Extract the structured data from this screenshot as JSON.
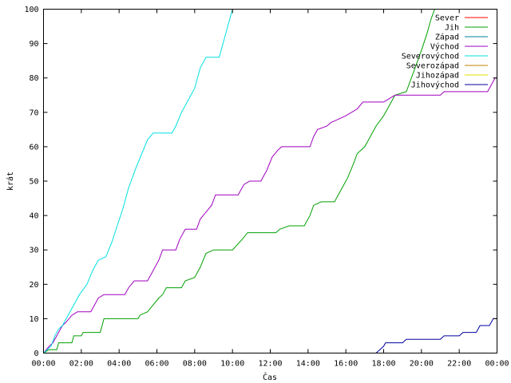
{
  "chart_data": {
    "type": "line",
    "title": "",
    "xlabel": "Čas",
    "ylabel": "krát",
    "x_unit": "hours",
    "xlim": [
      0,
      24
    ],
    "ylim": [
      0,
      100
    ],
    "x_ticks": [
      {
        "value": 0,
        "label": "00:00"
      },
      {
        "value": 2,
        "label": "02:00"
      },
      {
        "value": 4,
        "label": "04:00"
      },
      {
        "value": 6,
        "label": "06:00"
      },
      {
        "value": 8,
        "label": "08:00"
      },
      {
        "value": 10,
        "label": "10:00"
      },
      {
        "value": 12,
        "label": "12:00"
      },
      {
        "value": 14,
        "label": "14:00"
      },
      {
        "value": 16,
        "label": "16:00"
      },
      {
        "value": 18,
        "label": "18:00"
      },
      {
        "value": 20,
        "label": "20:00"
      },
      {
        "value": 22,
        "label": "22:00"
      },
      {
        "value": 24,
        "label": "00:00"
      }
    ],
    "y_ticks": [
      {
        "value": 0,
        "label": "0"
      },
      {
        "value": 10,
        "label": "10"
      },
      {
        "value": 20,
        "label": "20"
      },
      {
        "value": 30,
        "label": "30"
      },
      {
        "value": 40,
        "label": "40"
      },
      {
        "value": 50,
        "label": "50"
      },
      {
        "value": 60,
        "label": "60"
      },
      {
        "value": 70,
        "label": "70"
      },
      {
        "value": 80,
        "label": "80"
      },
      {
        "value": 90,
        "label": "90"
      },
      {
        "value": 100,
        "label": "100"
      }
    ],
    "grid": false,
    "legend_position": "top-right",
    "series": [
      {
        "name": "Sever",
        "color": "#ff0000",
        "points": []
      },
      {
        "name": "Jih",
        "color": "#00a000",
        "points": [
          [
            0,
            0
          ],
          [
            0.3,
            1
          ],
          [
            0.7,
            1
          ],
          [
            0.8,
            3
          ],
          [
            1.5,
            3
          ],
          [
            1.6,
            5
          ],
          [
            2.0,
            5
          ],
          [
            2.1,
            6
          ],
          [
            3.0,
            6
          ],
          [
            3.1,
            8
          ],
          [
            3.2,
            10
          ],
          [
            5.0,
            10
          ],
          [
            5.1,
            11
          ],
          [
            5.5,
            12
          ],
          [
            5.8,
            14
          ],
          [
            6.1,
            16
          ],
          [
            6.3,
            17
          ],
          [
            6.5,
            19
          ],
          [
            7.3,
            19
          ],
          [
            7.5,
            21
          ],
          [
            8.0,
            22
          ],
          [
            8.3,
            25
          ],
          [
            8.6,
            29
          ],
          [
            9.0,
            30
          ],
          [
            10.0,
            30
          ],
          [
            10.5,
            33
          ],
          [
            10.8,
            35
          ],
          [
            12.3,
            35
          ],
          [
            12.5,
            36
          ],
          [
            13.0,
            37
          ],
          [
            13.8,
            37
          ],
          [
            14.1,
            40
          ],
          [
            14.3,
            43
          ],
          [
            14.7,
            44
          ],
          [
            15.4,
            44
          ],
          [
            15.6,
            46
          ],
          [
            15.9,
            49
          ],
          [
            16.1,
            51
          ],
          [
            16.4,
            55
          ],
          [
            16.6,
            58
          ],
          [
            17.0,
            60
          ],
          [
            17.3,
            63
          ],
          [
            17.6,
            66
          ],
          [
            18.0,
            69
          ],
          [
            18.3,
            72
          ],
          [
            18.6,
            75
          ],
          [
            19.2,
            76
          ],
          [
            19.6,
            82
          ],
          [
            20.0,
            88
          ],
          [
            20.3,
            93
          ],
          [
            20.5,
            97
          ],
          [
            20.7,
            100
          ]
        ]
      },
      {
        "name": "Západ",
        "color": "#0080a0",
        "points": []
      },
      {
        "name": "Východ",
        "color": "#a000c0",
        "points": [
          [
            0,
            0
          ],
          [
            0.3,
            2
          ],
          [
            0.5,
            3
          ],
          [
            0.8,
            6
          ],
          [
            1.0,
            8
          ],
          [
            1.2,
            9
          ],
          [
            1.5,
            11
          ],
          [
            1.8,
            12
          ],
          [
            2.5,
            12
          ],
          [
            2.7,
            14
          ],
          [
            2.9,
            16
          ],
          [
            3.2,
            17
          ],
          [
            4.3,
            17
          ],
          [
            4.5,
            19
          ],
          [
            4.8,
            21
          ],
          [
            5.5,
            21
          ],
          [
            5.8,
            24
          ],
          [
            6.1,
            27
          ],
          [
            6.3,
            30
          ],
          [
            7.0,
            30
          ],
          [
            7.2,
            33
          ],
          [
            7.5,
            36
          ],
          [
            8.1,
            36
          ],
          [
            8.3,
            39
          ],
          [
            8.6,
            41
          ],
          [
            8.9,
            43
          ],
          [
            9.1,
            46
          ],
          [
            10.3,
            46
          ],
          [
            10.6,
            49
          ],
          [
            10.9,
            50
          ],
          [
            11.5,
            50
          ],
          [
            11.8,
            53
          ],
          [
            12.1,
            57
          ],
          [
            12.4,
            59
          ],
          [
            12.6,
            60
          ],
          [
            14.1,
            60
          ],
          [
            14.3,
            63
          ],
          [
            14.5,
            65
          ],
          [
            15.0,
            66
          ],
          [
            15.2,
            67
          ],
          [
            15.6,
            68
          ],
          [
            16.0,
            69
          ],
          [
            16.3,
            70
          ],
          [
            16.6,
            71
          ],
          [
            16.9,
            73
          ],
          [
            18.0,
            73
          ],
          [
            18.3,
            74
          ],
          [
            18.6,
            75
          ],
          [
            21.0,
            75
          ],
          [
            21.2,
            76
          ],
          [
            23.5,
            76
          ],
          [
            23.7,
            78
          ],
          [
            23.9,
            80
          ],
          [
            24,
            80
          ]
        ]
      },
      {
        "name": "Severovýchod",
        "color": "#00e0e0",
        "points": [
          [
            0,
            0
          ],
          [
            0.4,
            2
          ],
          [
            0.6,
            5
          ],
          [
            0.8,
            7
          ],
          [
            1.0,
            8
          ],
          [
            1.3,
            11
          ],
          [
            1.6,
            14
          ],
          [
            1.9,
            17
          ],
          [
            2.3,
            20
          ],
          [
            2.6,
            24
          ],
          [
            2.9,
            27
          ],
          [
            3.3,
            28
          ],
          [
            3.6,
            32
          ],
          [
            3.9,
            37
          ],
          [
            4.2,
            42
          ],
          [
            4.5,
            48
          ],
          [
            4.9,
            54
          ],
          [
            5.2,
            58
          ],
          [
            5.5,
            62
          ],
          [
            5.8,
            64
          ],
          [
            6.8,
            64
          ],
          [
            7.0,
            66
          ],
          [
            7.3,
            70
          ],
          [
            7.6,
            73
          ],
          [
            8.0,
            77
          ],
          [
            8.3,
            83
          ],
          [
            8.6,
            86
          ],
          [
            9.3,
            86
          ],
          [
            9.5,
            90
          ],
          [
            9.8,
            96
          ],
          [
            10.0,
            100
          ]
        ]
      },
      {
        "name": "Severozápad",
        "color": "#c08000",
        "points": []
      },
      {
        "name": "Jihozápad",
        "color": "#e0e000",
        "points": []
      },
      {
        "name": "Jihovýchod",
        "color": "#0000a0",
        "points": [
          [
            0,
            0
          ],
          [
            17.6,
            0
          ],
          [
            17.8,
            1
          ],
          [
            18.0,
            2
          ],
          [
            18.1,
            3
          ],
          [
            19.0,
            3
          ],
          [
            19.2,
            4
          ],
          [
            21.0,
            4
          ],
          [
            21.2,
            5
          ],
          [
            22.0,
            5
          ],
          [
            22.2,
            6
          ],
          [
            22.9,
            6
          ],
          [
            23.1,
            8
          ],
          [
            23.6,
            8
          ],
          [
            23.8,
            10
          ],
          [
            24,
            10
          ]
        ]
      }
    ]
  }
}
